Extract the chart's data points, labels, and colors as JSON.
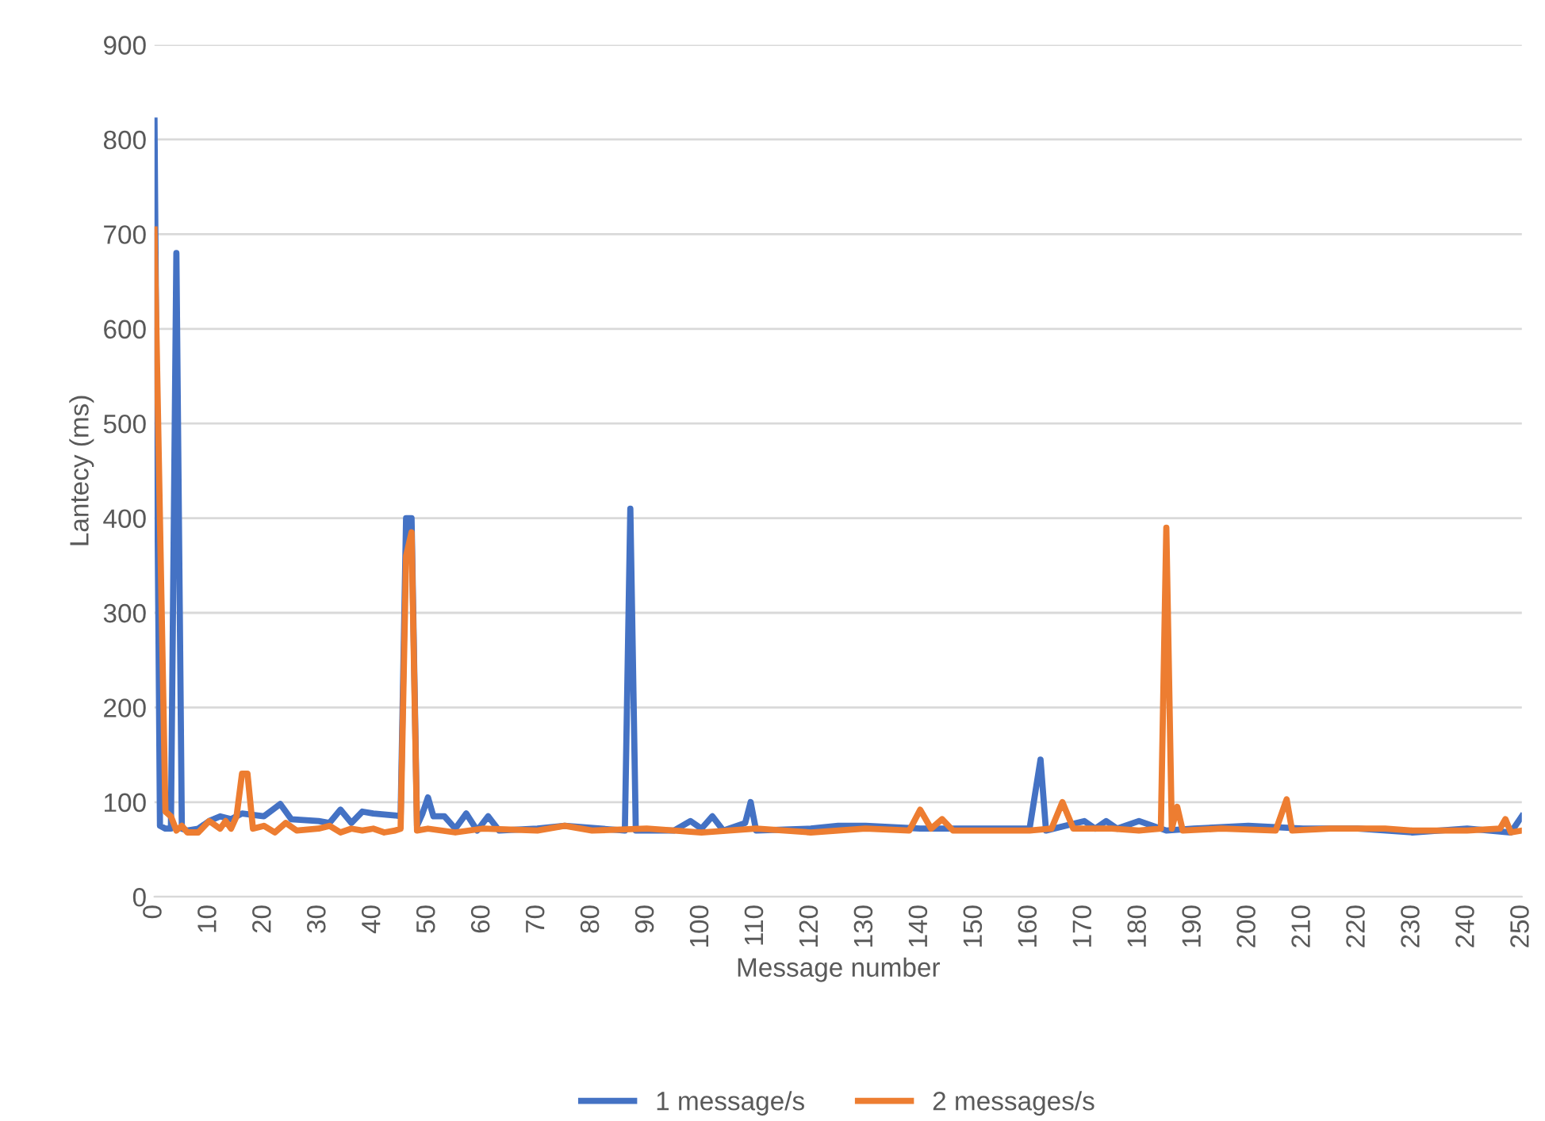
{
  "chart_data": {
    "type": "line",
    "xlabel": "Message number",
    "ylabel": "Lantecy (ms)",
    "xlim": [
      0,
      250
    ],
    "xticks": [
      0,
      10,
      20,
      30,
      40,
      50,
      60,
      70,
      80,
      90,
      100,
      110,
      120,
      130,
      140,
      150,
      160,
      170,
      180,
      190,
      200,
      210,
      220,
      230,
      240,
      250
    ],
    "ylim": [
      0,
      900
    ],
    "yticks": [
      0,
      100,
      200,
      300,
      400,
      500,
      600,
      700,
      800,
      900
    ],
    "grid": "y",
    "legend": "bottom",
    "series": [
      {
        "name": "1 message/s",
        "color": "#4472c4",
        "x": [
          0,
          1,
          2,
          3,
          4,
          5,
          6,
          8,
          10,
          12,
          14,
          16,
          20,
          23,
          25,
          30,
          32,
          34,
          36,
          38,
          40,
          44,
          45,
          46,
          47,
          48,
          49,
          50,
          51,
          53,
          55,
          57,
          59,
          61,
          63,
          70,
          75,
          86,
          87,
          88,
          95,
          98,
          100,
          102,
          104,
          108,
          109,
          110,
          120,
          125,
          130,
          140,
          150,
          160,
          162,
          163,
          170,
          172,
          174,
          176,
          180,
          185,
          190,
          200,
          210,
          220,
          230,
          240,
          248,
          250
        ],
        "values": [
          820,
          75,
          72,
          72,
          680,
          72,
          70,
          72,
          80,
          85,
          82,
          88,
          85,
          98,
          82,
          80,
          78,
          92,
          78,
          90,
          88,
          86,
          85,
          400,
          400,
          75,
          88,
          105,
          85,
          85,
          72,
          88,
          70,
          85,
          70,
          72,
          75,
          70,
          410,
          70,
          70,
          80,
          72,
          85,
          70,
          78,
          100,
          70,
          72,
          75,
          75,
          72,
          72,
          72,
          145,
          70,
          80,
          72,
          80,
          72,
          80,
          70,
          72,
          75,
          72,
          72,
          68,
          72,
          68,
          85
        ]
      },
      {
        "name": "2 messages/s",
        "color": "#ed7d31",
        "x": [
          0,
          2,
          3,
          4,
          5,
          6,
          8,
          10,
          12,
          13,
          14,
          15,
          16,
          17,
          18,
          20,
          22,
          24,
          26,
          30,
          32,
          34,
          36,
          38,
          40,
          42,
          44,
          45,
          46,
          47,
          48,
          50,
          55,
          60,
          70,
          75,
          80,
          90,
          100,
          110,
          120,
          130,
          138,
          140,
          142,
          144,
          146,
          160,
          164,
          166,
          168,
          175,
          180,
          184,
          185,
          186,
          187,
          188,
          195,
          205,
          207,
          208,
          215,
          225,
          230,
          240,
          246,
          247,
          248,
          250
        ],
        "values": [
          705,
          90,
          85,
          70,
          75,
          68,
          68,
          80,
          72,
          80,
          72,
          85,
          130,
          130,
          72,
          75,
          68,
          78,
          70,
          72,
          75,
          68,
          72,
          70,
          72,
          68,
          70,
          72,
          360,
          385,
          70,
          72,
          68,
          72,
          70,
          75,
          70,
          72,
          68,
          72,
          68,
          72,
          70,
          92,
          72,
          82,
          70,
          70,
          72,
          100,
          72,
          72,
          70,
          72,
          390,
          72,
          95,
          70,
          72,
          70,
          103,
          70,
          72,
          72,
          70,
          70,
          72,
          82,
          68,
          70
        ]
      }
    ]
  }
}
